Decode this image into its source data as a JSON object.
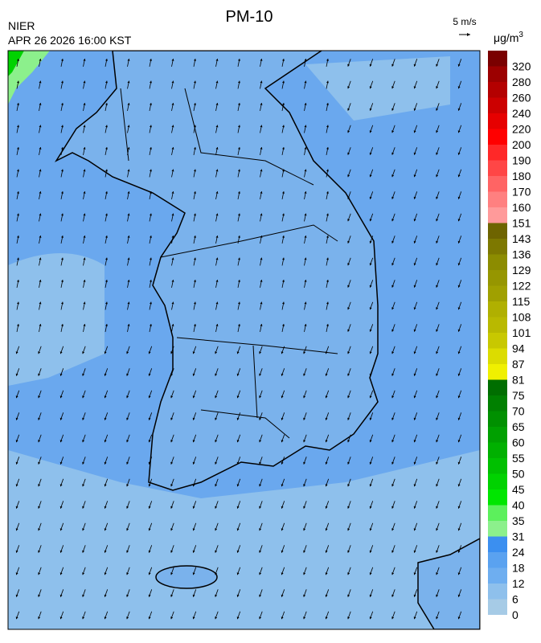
{
  "header": {
    "title": "PM-10",
    "source": "NIER",
    "timestamp": "APR 26 2026 16:00 KST"
  },
  "wind_scale": {
    "label": "5 m/s"
  },
  "legend": {
    "unit": "μg/m",
    "unit_exponent": "3",
    "labels": [
      0,
      6,
      12,
      18,
      24,
      31,
      35,
      40,
      45,
      50,
      55,
      60,
      65,
      70,
      75,
      81,
      87,
      94,
      101,
      108,
      115,
      122,
      129,
      136,
      143,
      151,
      160,
      170,
      180,
      190,
      200,
      220,
      240,
      260,
      280,
      320
    ],
    "colors": [
      "#a6cbe6",
      "#8ec0ec",
      "#6eaef0",
      "#5aa2f0",
      "#3b8ff0",
      "#8cf08c",
      "#5cf05c",
      "#00e600",
      "#00d200",
      "#00c000",
      "#00b000",
      "#00a000",
      "#009000",
      "#008000",
      "#006e00",
      "#f0f000",
      "#dcdc00",
      "#c8c800",
      "#b9b900",
      "#b0b000",
      "#a0a000",
      "#969600",
      "#8c8c00",
      "#7d7800",
      "#6e6400",
      "#ff9a9a",
      "#ff8080",
      "#ff6464",
      "#ff4646",
      "#ff2828",
      "#ff0000",
      "#e60000",
      "#cc0000",
      "#b40000",
      "#9c0000",
      "#7a0000"
    ]
  }
}
